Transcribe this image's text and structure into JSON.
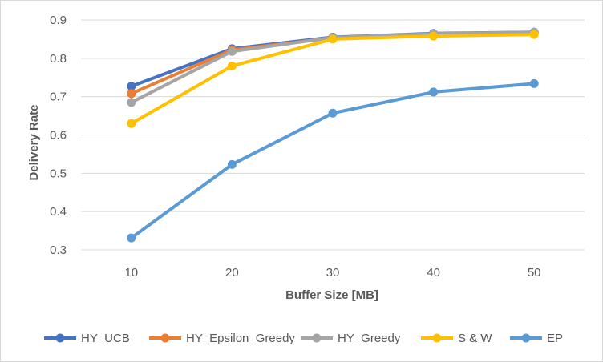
{
  "chart_data": {
    "type": "line",
    "title": "",
    "xlabel": "Buffer Size [MB]",
    "ylabel": "Delivery Rate",
    "categories": [
      "10",
      "20",
      "30",
      "40",
      "50"
    ],
    "ylim": [
      0.3,
      0.9
    ],
    "yticks": [
      "0.3",
      "0.4",
      "0.5",
      "0.6",
      "0.7",
      "0.8",
      "0.9"
    ],
    "grid": "horizontal",
    "legend_position": "bottom",
    "series": [
      {
        "name": "HY_UCB",
        "color": "#4472c4",
        "values": [
          0.727,
          0.825,
          0.855,
          0.865,
          0.868
        ]
      },
      {
        "name": "HY_Epsilon_Greedy",
        "color": "#ed7d31",
        "values": [
          0.708,
          0.822,
          0.853,
          0.862,
          0.866
        ]
      },
      {
        "name": "HY_Greedy",
        "color": "#a5a5a5",
        "values": [
          0.685,
          0.818,
          0.854,
          0.864,
          0.868
        ]
      },
      {
        "name": "S & W",
        "color": "#ffc000",
        "values": [
          0.63,
          0.78,
          0.85,
          0.858,
          0.862
        ]
      },
      {
        "name": "EP",
        "color": "#5b9bd5",
        "values": [
          0.331,
          0.523,
          0.657,
          0.712,
          0.734
        ]
      }
    ]
  }
}
